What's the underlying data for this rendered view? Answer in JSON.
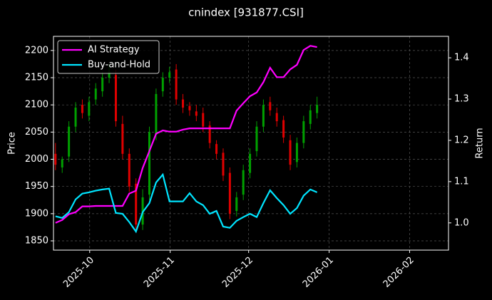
{
  "chart_data": {
    "type": "candlestick",
    "title": "cnindex [931877.CSI]",
    "ylabel": "Price",
    "y2label": "Return",
    "xlim": [
      -0.3,
      58.6
    ],
    "xticks": [
      {
        "value": 5.1,
        "label": "2025-10"
      },
      {
        "value": 17.1,
        "label": "2025-11"
      },
      {
        "value": 28.8,
        "label": "2025-12"
      },
      {
        "value": 40.8,
        "label": "2026-01"
      },
      {
        "value": 52.8,
        "label": "2026-02"
      }
    ],
    "ylim": [
      1833,
      2226
    ],
    "yticks": [
      1850,
      1900,
      1950,
      2000,
      2050,
      2100,
      2150,
      2200
    ],
    "y2lim": [
      0.934,
      1.452
    ],
    "y2ticks": [
      {
        "value": 1,
        "label": "1.0"
      },
      1.1,
      1.2,
      1.3,
      1.4
    ],
    "grid": true,
    "legend": "upper left",
    "up_color": "#00a000",
    "down_color": "#e00000",
    "open": [
      2010,
      1985,
      2005,
      2060,
      2100,
      2080,
      2110,
      2125,
      2150,
      2155,
      2065,
      2010,
      1955,
      1880,
      1935,
      2045,
      2125,
      2150,
      2165,
      2110,
      2098,
      2088,
      2085,
      2062,
      2028,
      2012,
      1975,
      1905,
      1935,
      1975,
      2015,
      2060,
      2105,
      2085,
      2072,
      2035,
      1995,
      2030,
      2065,
      2085
    ],
    "high": [
      2030,
      2005,
      2070,
      2105,
      2110,
      2115,
      2140,
      2160,
      2175,
      2165,
      2080,
      2020,
      1965,
      1945,
      2060,
      2130,
      2160,
      2170,
      2175,
      2120,
      2105,
      2100,
      2095,
      2070,
      2035,
      2020,
      1985,
      1940,
      1990,
      2020,
      2070,
      2110,
      2115,
      2095,
      2080,
      2045,
      2040,
      2080,
      2100,
      2115
    ],
    "low": [
      1980,
      1975,
      1995,
      2050,
      2075,
      2070,
      2100,
      2115,
      2140,
      2060,
      2000,
      1940,
      1865,
      1870,
      1925,
      2035,
      2115,
      2140,
      2100,
      2085,
      2080,
      2070,
      2050,
      2020,
      2000,
      1960,
      1890,
      1895,
      1925,
      1965,
      2005,
      2050,
      2080,
      2060,
      2030,
      1980,
      1985,
      2020,
      2055,
      2075
    ],
    "close": [
      1990,
      2000,
      2060,
      2095,
      2085,
      2105,
      2130,
      2150,
      2160,
      2070,
      2010,
      1950,
      1880,
      1930,
      2050,
      2120,
      2150,
      2160,
      2110,
      2095,
      2090,
      2080,
      2060,
      2030,
      2010,
      1970,
      1900,
      1930,
      1980,
      2010,
      2060,
      2100,
      2090,
      2070,
      2040,
      1990,
      2030,
      2070,
      2090,
      2100
    ],
    "series": [
      {
        "name": "AI Strategy",
        "color": "#ff00ff",
        "axis": "y2",
        "values": [
          1.0,
          1.007,
          1.021,
          1.026,
          1.04,
          1.04,
          1.041,
          1.041,
          1.041,
          1.041,
          1.041,
          1.071,
          1.078,
          1.133,
          1.174,
          1.216,
          1.224,
          1.221,
          1.221,
          1.226,
          1.229,
          1.229,
          1.229,
          1.229,
          1.229,
          1.229,
          1.229,
          1.272,
          1.29,
          1.307,
          1.316,
          1.341,
          1.376,
          1.353,
          1.353,
          1.372,
          1.383,
          1.419,
          1.429,
          1.426
        ]
      },
      {
        "name": "Buy-and-Hold",
        "color": "#00e5ff",
        "axis": "y2",
        "values": [
          1.016,
          1.012,
          1.026,
          1.057,
          1.071,
          1.074,
          1.078,
          1.081,
          1.083,
          1.024,
          1.022,
          1.002,
          0.979,
          1.026,
          1.048,
          1.098,
          1.117,
          1.052,
          1.052,
          1.052,
          1.072,
          1.052,
          1.043,
          1.022,
          1.029,
          0.991,
          0.988,
          1.005,
          1.014,
          1.022,
          1.014,
          1.048,
          1.079,
          1.06,
          1.043,
          1.022,
          1.036,
          1.066,
          1.081,
          1.074
        ]
      }
    ]
  }
}
